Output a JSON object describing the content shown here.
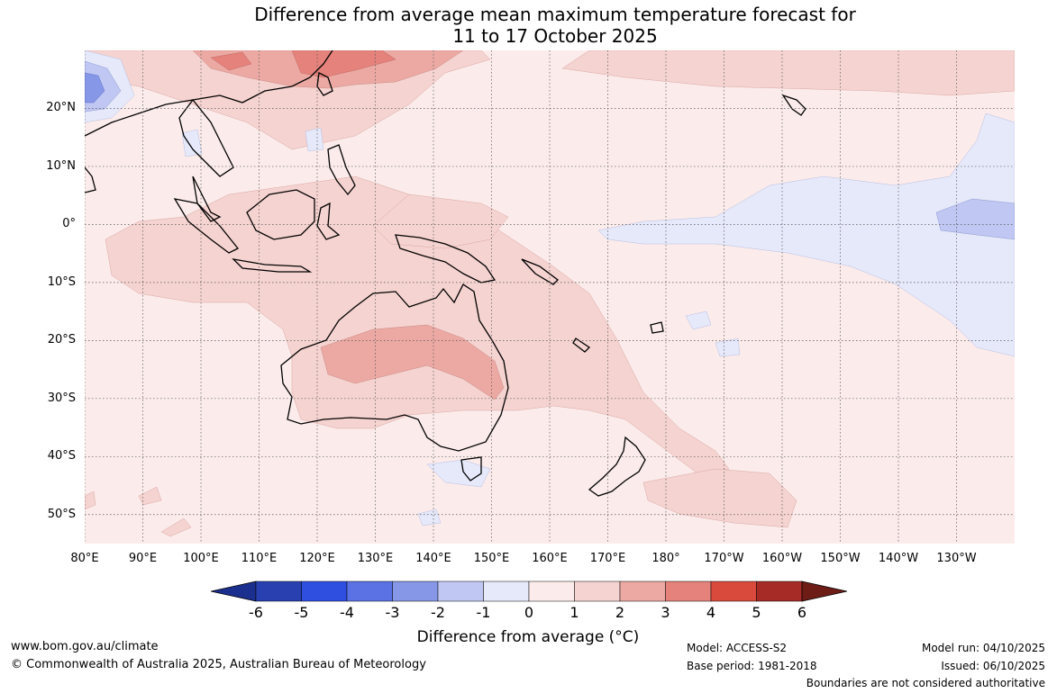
{
  "title": {
    "line1": "Difference from average mean maximum temperature forecast for",
    "line2": "11 to 17 October 2025"
  },
  "map": {
    "lat_labels": [
      "20°N",
      "10°N",
      "0°",
      "10°S",
      "20°S",
      "30°S",
      "40°S",
      "50°S"
    ],
    "lat_values": [
      20,
      10,
      0,
      -10,
      -20,
      -30,
      -40,
      -50
    ],
    "lon_labels": [
      "80°E",
      "90°E",
      "100°E",
      "110°E",
      "120°E",
      "130°E",
      "140°E",
      "150°E",
      "160°E",
      "170°E",
      "180°",
      "170°W",
      "160°W",
      "150°W",
      "140°W",
      "130°W"
    ],
    "lon_values": [
      80,
      90,
      100,
      110,
      120,
      130,
      140,
      150,
      160,
      170,
      180,
      190,
      200,
      210,
      220,
      230
    ],
    "extent": {
      "lon_min": 80,
      "lon_max": 240,
      "lat_min": -55,
      "lat_max": 30
    }
  },
  "colorbar": {
    "ticks": [
      "-6",
      "-5",
      "-4",
      "-3",
      "-2",
      "-1",
      "0",
      "1",
      "2",
      "3",
      "4",
      "5",
      "6"
    ],
    "colors": [
      "#1b2f8e",
      "#2840b0",
      "#2f4fe0",
      "#5a72e4",
      "#8797e8",
      "#bfc7f2",
      "#e6e9fa",
      "#fbeceb",
      "#f5d3d0",
      "#eca9a3",
      "#e4827b",
      "#da4a3c",
      "#a62a25",
      "#6e1c16"
    ],
    "label": "Difference from average (°C)"
  },
  "footer": {
    "website": "www.bom.gov.au/climate",
    "copyright": "© Commonwealth of Australia 2025, Australian Bureau of Meteorology",
    "model": "Model: ACCESS-S2",
    "base_period": "Base period: 1981-2018",
    "model_run": "Model run: 04/10/2025",
    "issued": "Issued: 06/10/2025",
    "disclaimer": "Boundaries are not considered authoritative"
  }
}
